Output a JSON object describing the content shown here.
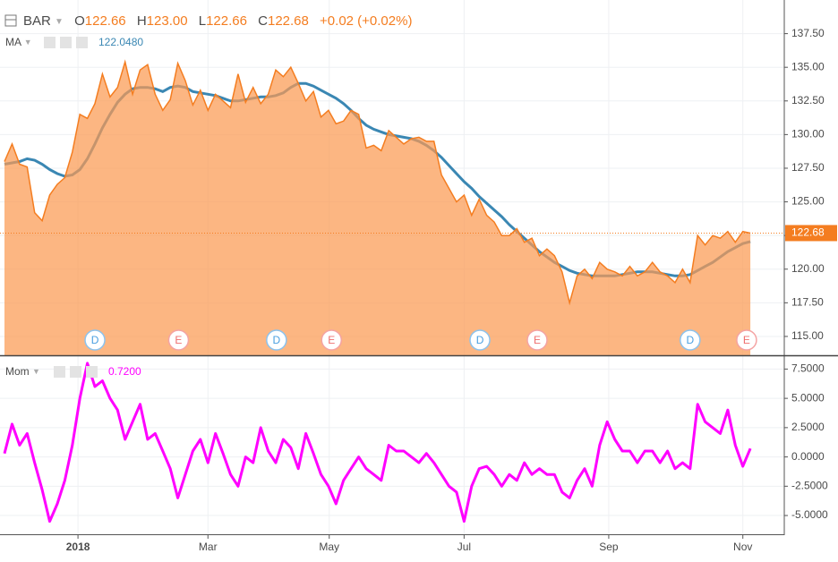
{
  "chart_data": [
    {
      "type": "area",
      "symbol": "BAR",
      "ohlc": [
        {
          "key": "O",
          "value": "122.66"
        },
        {
          "key": "H",
          "value": "123.00"
        },
        {
          "key": "L",
          "value": "122.66"
        },
        {
          "key": "C",
          "value": "122.68"
        }
      ],
      "change": "+0.02 (+0.02%)",
      "x": [
        0,
        1,
        2,
        3,
        4,
        5,
        6,
        7,
        8,
        9,
        10,
        11,
        12,
        13,
        14,
        15,
        16,
        17,
        18,
        19,
        20,
        21,
        22,
        23,
        24,
        25,
        26,
        27,
        28,
        29,
        30,
        31,
        32,
        33,
        34,
        35,
        36,
        37,
        38,
        39,
        40,
        41,
        42,
        43,
        44,
        45,
        46,
        47,
        48,
        49,
        50,
        51,
        52,
        53,
        54,
        55,
        56,
        57,
        58,
        59,
        60,
        61,
        62,
        63,
        64,
        65,
        66,
        67,
        68,
        69,
        70,
        71,
        72,
        73,
        74,
        75,
        76,
        77,
        78,
        79,
        80,
        81,
        82,
        83,
        84,
        85,
        86,
        87,
        88,
        89,
        90,
        91,
        92,
        93,
        94,
        95,
        96,
        97,
        98,
        99
      ],
      "xlim": [
        -0.6,
        103.5
      ],
      "xticks": [
        {
          "value": 9.75,
          "label": "2018"
        },
        {
          "value": 27,
          "label": "Mar"
        },
        {
          "value": 43.1,
          "label": "May"
        },
        {
          "value": 61,
          "label": "Jul"
        },
        {
          "value": 80.2,
          "label": "Sep"
        },
        {
          "value": 98,
          "label": "Nov"
        }
      ],
      "ylim": [
        113.6,
        140
      ],
      "yticks": [
        {
          "value": 115,
          "label": "115.00"
        },
        {
          "value": 117.5,
          "label": "117.50"
        },
        {
          "value": 120,
          "label": "120.00"
        },
        {
          "value": 122.5,
          "label": "122.50"
        },
        {
          "value": 125,
          "label": "125.00"
        },
        {
          "value": 127.5,
          "label": "127.50"
        },
        {
          "value": 130,
          "label": "130.00"
        },
        {
          "value": 132.5,
          "label": "132.50"
        },
        {
          "value": 135,
          "label": "135.00"
        },
        {
          "value": 137.5,
          "label": "137.50"
        }
      ],
      "grid": true,
      "series": [
        {
          "name": "BAR",
          "color": "#f47d20",
          "fill": "#fb9a52",
          "values": [
            128.0,
            129.3,
            127.8,
            127.6,
            124.2,
            123.6,
            125.5,
            126.3,
            126.8,
            128.7,
            131.5,
            131.2,
            132.3,
            134.5,
            132.8,
            133.5,
            135.4,
            133.0,
            134.8,
            135.2,
            133.0,
            131.8,
            132.6,
            135.3,
            134.0,
            132.2,
            133.3,
            131.8,
            133.0,
            132.5,
            132.0,
            134.5,
            132.4,
            133.5,
            132.3,
            133.0,
            134.8,
            134.3,
            135.0,
            133.8,
            132.5,
            133.2,
            131.3,
            131.8,
            130.8,
            131.0,
            131.8,
            131.5,
            129.0,
            129.2,
            128.8,
            130.3,
            129.8,
            129.3,
            129.7,
            129.8,
            129.5,
            129.5,
            127.0,
            126.0,
            125.0,
            125.5,
            124.0,
            125.2,
            124.0,
            123.5,
            122.5,
            122.5,
            123.0,
            122.0,
            122.3,
            121.0,
            121.5,
            121.0,
            119.8,
            117.5,
            119.5,
            120.0,
            119.3,
            120.5,
            120.0,
            119.8,
            119.5,
            120.2,
            119.5,
            119.8,
            120.5,
            119.8,
            119.5,
            119.0,
            120.0,
            119.0,
            122.5,
            121.8,
            122.5,
            122.3,
            122.8,
            122.0,
            122.8,
            122.68
          ]
        },
        {
          "name": "MA",
          "color": "#3a87b3",
          "legend_value": "122.0480",
          "values": [
            127.8,
            127.9,
            128.0,
            128.2,
            128.1,
            127.8,
            127.4,
            127.1,
            126.9,
            127.0,
            127.4,
            128.2,
            129.3,
            130.5,
            131.5,
            132.4,
            133.0,
            133.4,
            133.5,
            133.5,
            133.4,
            133.2,
            133.5,
            133.6,
            133.5,
            133.2,
            133.1,
            133.0,
            132.9,
            132.7,
            132.5,
            132.5,
            132.6,
            132.7,
            132.8,
            132.8,
            132.9,
            133.1,
            133.5,
            133.8,
            133.8,
            133.6,
            133.3,
            133.0,
            132.7,
            132.3,
            131.8,
            131.2,
            130.7,
            130.4,
            130.2,
            130.0,
            129.9,
            129.8,
            129.7,
            129.5,
            129.2,
            128.8,
            128.3,
            127.7,
            127.1,
            126.5,
            126.0,
            125.4,
            124.9,
            124.4,
            123.9,
            123.3,
            122.8,
            122.3,
            121.8,
            121.3,
            120.9,
            120.5,
            120.2,
            119.9,
            119.7,
            119.6,
            119.5,
            119.5,
            119.5,
            119.5,
            119.6,
            119.7,
            119.8,
            119.8,
            119.8,
            119.7,
            119.6,
            119.5,
            119.5,
            119.6,
            119.9,
            120.2,
            120.5,
            120.9,
            121.3,
            121.6,
            121.9,
            122.05
          ]
        }
      ],
      "events": [
        {
          "x": 12,
          "label": "D"
        },
        {
          "x": 23.1,
          "label": "E"
        },
        {
          "x": 36.1,
          "label": "D"
        },
        {
          "x": 43.4,
          "label": "E"
        },
        {
          "x": 63.1,
          "label": "D"
        },
        {
          "x": 70.7,
          "label": "E"
        },
        {
          "x": 91,
          "label": "D"
        },
        {
          "x": 98.5,
          "label": "E"
        }
      ]
    },
    {
      "type": "line",
      "x": [
        0,
        1,
        2,
        3,
        4,
        5,
        6,
        7,
        8,
        9,
        10,
        11,
        12,
        13,
        14,
        15,
        16,
        17,
        18,
        19,
        20,
        21,
        22,
        23,
        24,
        25,
        26,
        27,
        28,
        29,
        30,
        31,
        32,
        33,
        34,
        35,
        36,
        37,
        38,
        39,
        40,
        41,
        42,
        43,
        44,
        45,
        46,
        47,
        48,
        49,
        50,
        51,
        52,
        53,
        54,
        55,
        56,
        57,
        58,
        59,
        60,
        61,
        62,
        63,
        64,
        65,
        66,
        67,
        68,
        69,
        70,
        71,
        72,
        73,
        74,
        75,
        76,
        77,
        78,
        79,
        80,
        81,
        82,
        83,
        84,
        85,
        86,
        87,
        88,
        89,
        90,
        91,
        92,
        93,
        94,
        95,
        96,
        97,
        98,
        99
      ],
      "xlim": [
        -0.6,
        103.5
      ],
      "ylim": [
        -6.6,
        8.6
      ],
      "yticks": [
        {
          "value": -5,
          "label": "-5.0000"
        },
        {
          "value": -2.5,
          "label": "-2.5000"
        },
        {
          "value": 0,
          "label": "0.0000"
        },
        {
          "value": 2.5,
          "label": "2.5000"
        },
        {
          "value": 5,
          "label": "5.0000"
        },
        {
          "value": 7.5,
          "label": "7.5000"
        }
      ],
      "grid": true,
      "series": [
        {
          "name": "Mom",
          "color": "#ff00ff",
          "legend_value": "0.7200",
          "values": [
            0.3,
            2.8,
            1.0,
            2.0,
            -0.5,
            -2.8,
            -5.5,
            -4.0,
            -2.0,
            1.0,
            5.0,
            8.0,
            6.0,
            6.5,
            5.0,
            4.0,
            1.5,
            3.0,
            4.5,
            1.5,
            2.0,
            0.5,
            -1.0,
            -3.5,
            -1.5,
            0.5,
            1.5,
            -0.5,
            2.0,
            0.3,
            -1.5,
            -2.5,
            0.0,
            -0.5,
            2.5,
            0.5,
            -0.5,
            1.5,
            0.8,
            -1.0,
            2.0,
            0.3,
            -1.5,
            -2.5,
            -4.0,
            -2.0,
            -1.0,
            0.0,
            -1.0,
            -1.5,
            -2.0,
            1.0,
            0.5,
            0.5,
            0.0,
            -0.5,
            0.3,
            -0.5,
            -1.5,
            -2.5,
            -3.0,
            -5.5,
            -2.5,
            -1.0,
            -0.8,
            -1.5,
            -2.5,
            -1.5,
            -2.0,
            -0.5,
            -1.5,
            -1.0,
            -1.5,
            -1.5,
            -3.0,
            -3.5,
            -2.0,
            -1.0,
            -2.5,
            1.0,
            3.0,
            1.5,
            0.5,
            0.5,
            -0.5,
            0.5,
            0.5,
            -0.5,
            0.5,
            -1.0,
            -0.5,
            -1.0,
            4.5,
            3.0,
            2.5,
            2.0,
            4.0,
            1.0,
            -0.8,
            0.72
          ]
        }
      ]
    }
  ]
}
